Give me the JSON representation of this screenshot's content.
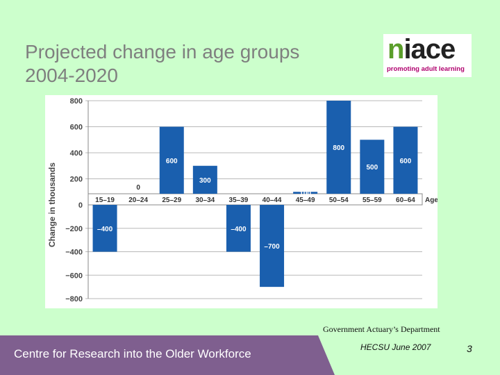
{
  "slide": {
    "title_line1": "Projected change in age groups",
    "title_line2": "2004-2020",
    "logo_word_n": "n",
    "logo_word_rest": "iace",
    "logo_tagline": "promoting adult learning",
    "source": "Government Actuary’s Department",
    "footer": "Centre for Research into the Older Workforce",
    "date_note": "HECSU June 2007",
    "page_number": "3"
  },
  "colors": {
    "background": "#ccffcc",
    "bar": "#1a5fae",
    "footer": "#7f5f8f"
  },
  "chart_data": {
    "type": "bar",
    "categories": [
      "15–19",
      "20–24",
      "25–29",
      "30–34",
      "35–39",
      "40–44",
      "45–49",
      "50–54",
      "55–59",
      "60–64"
    ],
    "values": [
      -400,
      0,
      600,
      300,
      -400,
      -700,
      100,
      800,
      500,
      600
    ],
    "data_labels": [
      "–400",
      "0",
      "600",
      "300",
      "–400",
      "–700",
      "100",
      "800",
      "500",
      "600"
    ],
    "title": "",
    "xlabel": "Age",
    "ylabel": "Change in thousands",
    "ylim": [
      -800,
      800
    ],
    "yticks": [
      800,
      600,
      400,
      200,
      0,
      -200,
      -400,
      -600,
      -800
    ],
    "ytick_labels": [
      "800",
      "600",
      "400",
      "200",
      "0",
      "−200",
      "−400",
      "−600",
      "−800"
    ],
    "grid": true
  }
}
